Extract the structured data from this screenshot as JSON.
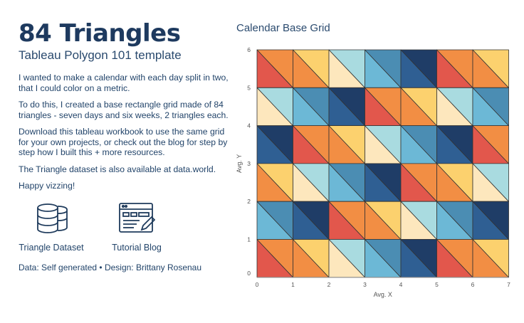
{
  "header": {
    "title": "84 Triangles",
    "subtitle": "Tableau Polygon 101 template"
  },
  "paragraphs": [
    "I wanted to make a calendar with each day split in two, that I could color on a metric.",
    "To do this, I created a base rectangle grid made of 84 triangles - seven days and six weeks, 2 triangles each.",
    "Download this tableau workbook to use the same grid for your own projects, or check out the blog for step by step how I built this + more resources.",
    "The Triangle dataset is also available at data.world.",
    "Happy vizzing!"
  ],
  "links": {
    "dataset_label": "Triangle Dataset",
    "blog_label": "Tutorial Blog",
    "dataset_icon": "database-icon",
    "blog_icon": "browser-edit-icon"
  },
  "credit": "Data: Self generated • Design: Brittany Rosenau",
  "colors": {
    "title": "#1e3a5f",
    "palette": [
      "#e2574c",
      "#f28e44",
      "#fcd16e",
      "#fde7bd",
      "#a9dbe0",
      "#6cb8d6",
      "#4b8db3",
      "#2f5f93",
      "#1f3d67"
    ]
  },
  "chart_data": {
    "type": "polygon",
    "title": "Calendar Base Grid",
    "xlabel": "Avg. X",
    "ylabel": "Avg. Y",
    "xlim": [
      0,
      7
    ],
    "ylim": [
      0,
      6
    ],
    "xticks": [
      "0",
      "1",
      "2",
      "3",
      "4",
      "5",
      "6",
      "7"
    ],
    "yticks": [
      "0",
      "1",
      "2",
      "3",
      "4",
      "5",
      "6"
    ],
    "grid": false,
    "cells": [
      {
        "row": 5,
        "col": 0,
        "lower": "#e2574c",
        "upper": "#f28e44"
      },
      {
        "row": 5,
        "col": 1,
        "lower": "#f28e44",
        "upper": "#fcd16e"
      },
      {
        "row": 5,
        "col": 2,
        "lower": "#fde7bd",
        "upper": "#a9dbe0"
      },
      {
        "row": 5,
        "col": 3,
        "lower": "#6cb8d6",
        "upper": "#4b8db3"
      },
      {
        "row": 5,
        "col": 4,
        "lower": "#2f5f93",
        "upper": "#1f3d67"
      },
      {
        "row": 5,
        "col": 5,
        "lower": "#e2574c",
        "upper": "#f28e44"
      },
      {
        "row": 5,
        "col": 6,
        "lower": "#f28e44",
        "upper": "#fcd16e"
      },
      {
        "row": 4,
        "col": 0,
        "lower": "#fde7bd",
        "upper": "#a9dbe0"
      },
      {
        "row": 4,
        "col": 1,
        "lower": "#6cb8d6",
        "upper": "#4b8db3"
      },
      {
        "row": 4,
        "col": 2,
        "lower": "#2f5f93",
        "upper": "#1f3d67"
      },
      {
        "row": 4,
        "col": 3,
        "lower": "#e2574c",
        "upper": "#f28e44"
      },
      {
        "row": 4,
        "col": 4,
        "lower": "#f28e44",
        "upper": "#fcd16e"
      },
      {
        "row": 4,
        "col": 5,
        "lower": "#fde7bd",
        "upper": "#a9dbe0"
      },
      {
        "row": 4,
        "col": 6,
        "lower": "#6cb8d6",
        "upper": "#4b8db3"
      },
      {
        "row": 3,
        "col": 0,
        "lower": "#2f5f93",
        "upper": "#1f3d67"
      },
      {
        "row": 3,
        "col": 1,
        "lower": "#e2574c",
        "upper": "#f28e44"
      },
      {
        "row": 3,
        "col": 2,
        "lower": "#f28e44",
        "upper": "#fcd16e"
      },
      {
        "row": 3,
        "col": 3,
        "lower": "#fde7bd",
        "upper": "#a9dbe0"
      },
      {
        "row": 3,
        "col": 4,
        "lower": "#6cb8d6",
        "upper": "#4b8db3"
      },
      {
        "row": 3,
        "col": 5,
        "lower": "#2f5f93",
        "upper": "#1f3d67"
      },
      {
        "row": 3,
        "col": 6,
        "lower": "#e2574c",
        "upper": "#f28e44"
      },
      {
        "row": 2,
        "col": 0,
        "lower": "#f28e44",
        "upper": "#fcd16e"
      },
      {
        "row": 2,
        "col": 1,
        "lower": "#fde7bd",
        "upper": "#a9dbe0"
      },
      {
        "row": 2,
        "col": 2,
        "lower": "#6cb8d6",
        "upper": "#4b8db3"
      },
      {
        "row": 2,
        "col": 3,
        "lower": "#2f5f93",
        "upper": "#1f3d67"
      },
      {
        "row": 2,
        "col": 4,
        "lower": "#e2574c",
        "upper": "#f28e44"
      },
      {
        "row": 2,
        "col": 5,
        "lower": "#f28e44",
        "upper": "#fcd16e"
      },
      {
        "row": 2,
        "col": 6,
        "lower": "#fde7bd",
        "upper": "#a9dbe0"
      },
      {
        "row": 1,
        "col": 0,
        "lower": "#6cb8d6",
        "upper": "#4b8db3"
      },
      {
        "row": 1,
        "col": 1,
        "lower": "#2f5f93",
        "upper": "#1f3d67"
      },
      {
        "row": 1,
        "col": 2,
        "lower": "#e2574c",
        "upper": "#f28e44"
      },
      {
        "row": 1,
        "col": 3,
        "lower": "#f28e44",
        "upper": "#fcd16e"
      },
      {
        "row": 1,
        "col": 4,
        "lower": "#fde7bd",
        "upper": "#a9dbe0"
      },
      {
        "row": 1,
        "col": 5,
        "lower": "#6cb8d6",
        "upper": "#4b8db3"
      },
      {
        "row": 1,
        "col": 6,
        "lower": "#2f5f93",
        "upper": "#1f3d67"
      },
      {
        "row": 0,
        "col": 0,
        "lower": "#e2574c",
        "upper": "#f28e44"
      },
      {
        "row": 0,
        "col": 1,
        "lower": "#f28e44",
        "upper": "#fcd16e"
      },
      {
        "row": 0,
        "col": 2,
        "lower": "#fde7bd",
        "upper": "#a9dbe0"
      },
      {
        "row": 0,
        "col": 3,
        "lower": "#6cb8d6",
        "upper": "#4b8db3"
      },
      {
        "row": 0,
        "col": 4,
        "lower": "#2f5f93",
        "upper": "#1f3d67"
      },
      {
        "row": 0,
        "col": 5,
        "lower": "#e2574c",
        "upper": "#f28e44"
      },
      {
        "row": 0,
        "col": 6,
        "lower": "#f28e44",
        "upper": "#fcd16e"
      }
    ]
  }
}
